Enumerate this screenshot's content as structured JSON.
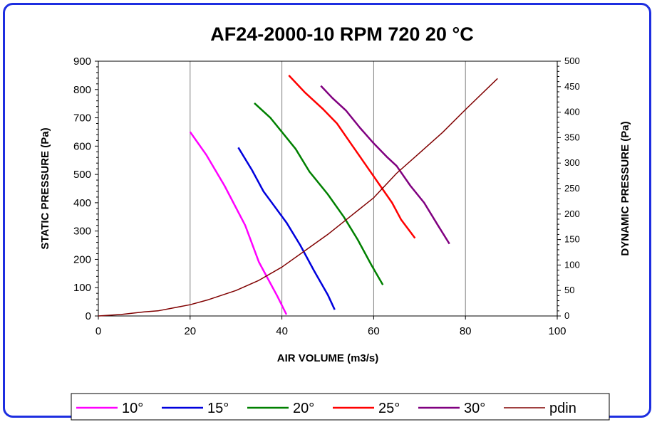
{
  "chart_data": {
    "type": "line",
    "title": "AF24-2000-10 RPM 720 20 °C",
    "xlabel": "AIR VOLUME (m3/s)",
    "ylabel": "STATIC PRESSURE (Pa)",
    "y2label": "DYNAMIC PRESSURE (Pa)",
    "xlim": [
      0,
      100
    ],
    "ylim": [
      0,
      900
    ],
    "y2lim": [
      0,
      500
    ],
    "xticks": [
      0,
      20,
      40,
      60,
      80,
      100
    ],
    "yticks": [
      0,
      100,
      200,
      300,
      400,
      500,
      600,
      700,
      800,
      900
    ],
    "y2ticks": [
      0,
      50,
      100,
      150,
      200,
      250,
      300,
      350,
      400,
      450,
      500
    ],
    "grid": "vertical",
    "legend_position": "bottom",
    "series": [
      {
        "name": "10°",
        "color": "#ff00ff",
        "axis": "left",
        "points": [
          [
            20,
            650
          ],
          [
            23.5,
            570
          ],
          [
            27.5,
            460
          ],
          [
            32,
            320
          ],
          [
            35,
            190
          ],
          [
            39,
            70
          ],
          [
            41,
            5
          ]
        ]
      },
      {
        "name": "15°",
        "color": "#0000dd",
        "axis": "left",
        "points": [
          [
            30.5,
            595
          ],
          [
            33.5,
            515
          ],
          [
            36,
            440
          ],
          [
            41,
            330
          ],
          [
            44,
            250
          ],
          [
            47,
            160
          ],
          [
            50,
            75
          ],
          [
            51.5,
            22
          ]
        ]
      },
      {
        "name": "20°",
        "color": "#008000",
        "axis": "left",
        "points": [
          [
            34,
            752
          ],
          [
            37.5,
            700
          ],
          [
            40,
            650
          ],
          [
            43,
            590
          ],
          [
            46,
            510
          ],
          [
            50,
            430
          ],
          [
            53.5,
            350
          ],
          [
            56.5,
            270
          ],
          [
            59.5,
            180
          ],
          [
            62,
            110
          ]
        ]
      },
      {
        "name": "25°",
        "color": "#ff0000",
        "axis": "left",
        "points": [
          [
            41.5,
            850
          ],
          [
            45,
            790
          ],
          [
            49,
            730
          ],
          [
            52,
            680
          ],
          [
            55,
            610
          ],
          [
            58,
            540
          ],
          [
            61,
            470
          ],
          [
            64,
            400
          ],
          [
            66,
            340
          ],
          [
            69,
            275
          ]
        ]
      },
      {
        "name": "30°",
        "color": "#800080",
        "axis": "left",
        "points": [
          [
            48.5,
            813
          ],
          [
            51,
            770
          ],
          [
            54,
            725
          ],
          [
            57,
            665
          ],
          [
            60,
            610
          ],
          [
            63,
            560
          ],
          [
            65,
            530
          ],
          [
            68,
            460
          ],
          [
            71,
            400
          ],
          [
            74,
            320
          ],
          [
            76.5,
            255
          ]
        ]
      },
      {
        "name": "pdin",
        "color": "#800000",
        "axis": "right",
        "points": [
          [
            0,
            0
          ],
          [
            5,
            3
          ],
          [
            10,
            8
          ],
          [
            13,
            10
          ],
          [
            20,
            22
          ],
          [
            24,
            32
          ],
          [
            30,
            50
          ],
          [
            35,
            70
          ],
          [
            40,
            96
          ],
          [
            45,
            128
          ],
          [
            50,
            160
          ],
          [
            55,
            196
          ],
          [
            60,
            232
          ],
          [
            65,
            280
          ],
          [
            70,
            320
          ],
          [
            75,
            360
          ],
          [
            80,
            405
          ],
          [
            87,
            466
          ]
        ]
      }
    ]
  }
}
